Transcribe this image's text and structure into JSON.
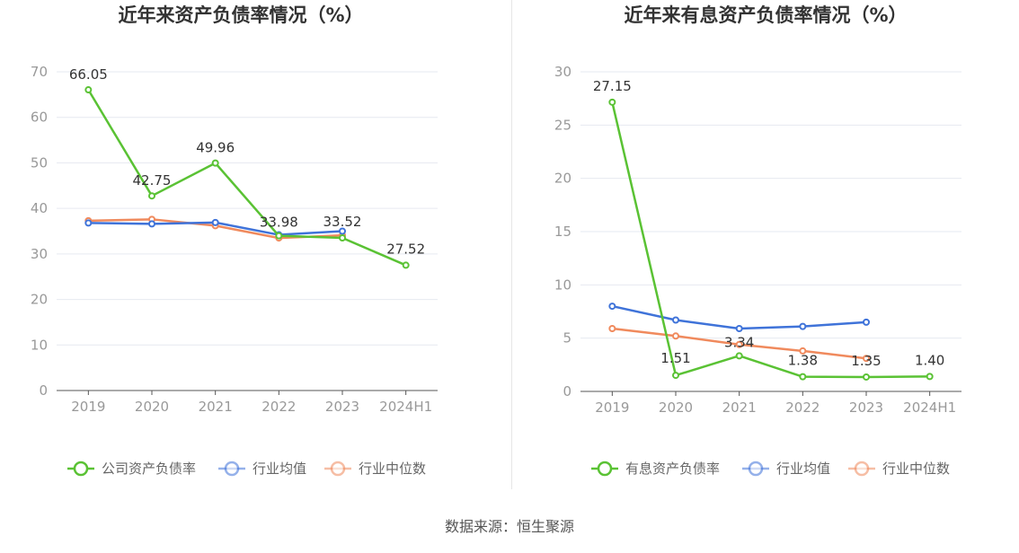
{
  "source": "数据来源：恒生聚源",
  "chart_data": [
    {
      "type": "line",
      "title": "近年来资产负债率情况（%）",
      "categories": [
        "2019",
        "2020",
        "2021",
        "2022",
        "2023",
        "2024H1"
      ],
      "ylim": [
        0,
        70
      ],
      "yticks": [
        0,
        10,
        20,
        30,
        40,
        50,
        60,
        70
      ],
      "grid": true,
      "legend_position": "bottom",
      "series": [
        {
          "name": "公司资产负债率",
          "color": "#5ac234",
          "values": [
            66.05,
            42.75,
            49.96,
            33.98,
            33.52,
            27.52
          ],
          "labels": [
            "66.05",
            "42.75",
            "49.96",
            "33.98",
            "33.52",
            "27.52"
          ]
        },
        {
          "name": "行业均值",
          "color": "#3f73d9",
          "values": [
            36.8,
            36.6,
            36.9,
            34.2,
            35.0,
            null
          ]
        },
        {
          "name": "行业中位数",
          "color": "#f08a5d",
          "values": [
            37.3,
            37.6,
            36.2,
            33.5,
            34.1,
            null
          ]
        }
      ]
    },
    {
      "type": "line",
      "title": "近年来有息资产负债率情况（%）",
      "categories": [
        "2019",
        "2020",
        "2021",
        "2022",
        "2023",
        "2024H1"
      ],
      "ylim": [
        0,
        30
      ],
      "yticks": [
        0,
        5,
        10,
        15,
        20,
        25,
        30
      ],
      "grid": true,
      "legend_position": "bottom",
      "series": [
        {
          "name": "有息资产负债率",
          "color": "#5ac234",
          "values": [
            27.15,
            1.51,
            3.34,
            1.38,
            1.35,
            1.4
          ],
          "labels": [
            "27.15",
            "1.51",
            "3.34",
            "1.38",
            "1.35",
            "1.40"
          ]
        },
        {
          "name": "行业均值",
          "color": "#3f73d9",
          "values": [
            8.0,
            6.7,
            5.9,
            6.1,
            6.5,
            null
          ]
        },
        {
          "name": "行业中位数",
          "color": "#f08a5d",
          "values": [
            5.9,
            5.2,
            4.4,
            3.8,
            3.1,
            null
          ]
        }
      ]
    }
  ]
}
